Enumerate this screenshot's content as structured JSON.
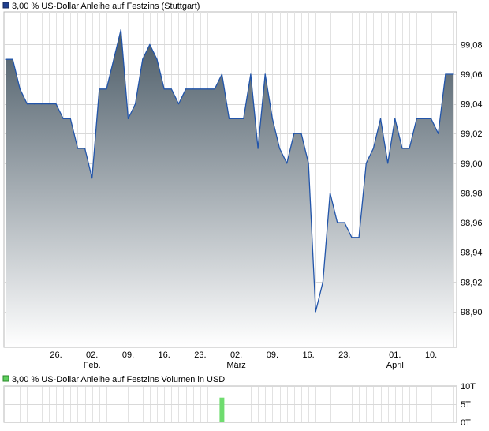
{
  "chart_data": [
    {
      "type": "area",
      "title": "3,00 % US-Dollar Anleihe auf Festzins (Stuttgart)",
      "legend_color": "#1f3f8f",
      "line_color": "#2255aa",
      "fill_top_color": "#4a5a66",
      "fill_bottom_color": "#ffffff",
      "x_tick_labels": [
        {
          "day": "26.",
          "month": "",
          "pos": 7
        },
        {
          "day": "02.",
          "month": "Feb.",
          "pos": 12
        },
        {
          "day": "09.",
          "month": "",
          "pos": 17
        },
        {
          "day": "16.",
          "month": "",
          "pos": 22
        },
        {
          "day": "23.",
          "month": "",
          "pos": 27
        },
        {
          "day": "02.",
          "month": "März",
          "pos": 32
        },
        {
          "day": "09.",
          "month": "",
          "pos": 37
        },
        {
          "day": "16.",
          "month": "",
          "pos": 42
        },
        {
          "day": "23.",
          "month": "",
          "pos": 47
        },
        {
          "day": "01.",
          "month": "April",
          "pos": 54
        },
        {
          "day": "10.",
          "month": "",
          "pos": 59
        }
      ],
      "y_ticks": [
        "99,08",
        "99,06",
        "99,04",
        "99,02",
        "99,00",
        "98,98",
        "98,96",
        "98,94",
        "98,92",
        "98,90"
      ],
      "y_tick_values": [
        99.08,
        99.06,
        99.04,
        99.02,
        99.0,
        98.98,
        98.96,
        98.94,
        98.92,
        98.9
      ],
      "ylim": [
        98.876,
        99.102
      ],
      "x": [
        0,
        1,
        2,
        3,
        4,
        5,
        6,
        7,
        8,
        9,
        10,
        11,
        12,
        13,
        14,
        15,
        16,
        17,
        18,
        19,
        20,
        21,
        22,
        23,
        24,
        25,
        26,
        27,
        28,
        29,
        30,
        31,
        32,
        33,
        34,
        35,
        36,
        37,
        38,
        39,
        40,
        41,
        42,
        43,
        44,
        45,
        46,
        47,
        48,
        49,
        50,
        51,
        52,
        53,
        54,
        55,
        56,
        57,
        58,
        59,
        60,
        61,
        62
      ],
      "values": [
        99.07,
        99.07,
        99.05,
        99.04,
        99.04,
        99.04,
        99.04,
        99.04,
        99.03,
        99.03,
        99.01,
        99.01,
        98.99,
        99.05,
        99.05,
        99.07,
        99.09,
        99.03,
        99.04,
        99.07,
        99.08,
        99.07,
        99.05,
        99.05,
        99.04,
        99.05,
        99.05,
        99.05,
        99.05,
        99.05,
        99.06,
        99.03,
        99.03,
        99.03,
        99.06,
        99.01,
        99.06,
        99.03,
        99.01,
        99.0,
        99.02,
        99.02,
        99.0,
        98.9,
        98.92,
        98.98,
        98.96,
        98.96,
        98.95,
        98.95,
        99.0,
        99.01,
        99.03,
        99.0,
        99.03,
        99.01,
        99.01,
        99.03,
        99.03,
        99.03,
        99.02,
        99.06,
        99.06
      ],
      "grid": true
    },
    {
      "type": "bar",
      "title": "3,00 % US-Dollar Anleihe auf Festzins Volumen in USD",
      "legend_color": "#5ecf5e",
      "bar_color": "#6fdc6f",
      "y_ticks": [
        "10T",
        "5T",
        "0T"
      ],
      "y_tick_values": [
        10,
        5,
        0
      ],
      "ylim": [
        0,
        10
      ],
      "volume_bars": [
        {
          "x": 30,
          "value": 6.8
        }
      ],
      "grid": true
    }
  ]
}
